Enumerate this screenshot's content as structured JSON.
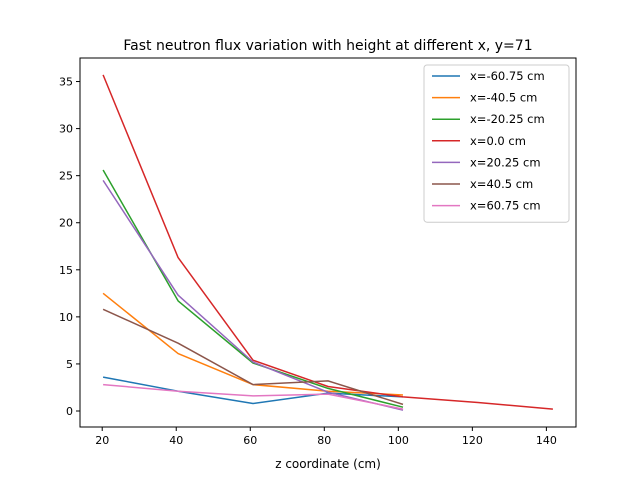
{
  "chart_data": {
    "type": "line",
    "title": "Fast neutron flux variation with height at different x, y=71",
    "xlabel": "z coordinate (cm)",
    "ylabel": "",
    "xlim": [
      14,
      148
    ],
    "ylim": [
      -1.7,
      37.5
    ],
    "xticks": [
      "20",
      "40",
      "60",
      "80",
      "100",
      "120",
      "140"
    ],
    "yticks": [
      "0",
      "5",
      "10",
      "15",
      "20",
      "25",
      "30",
      "35"
    ],
    "grid": false,
    "legend_position": "upper right",
    "series": [
      {
        "name": "x=-60.75 cm",
        "color": "#1f77b4",
        "x": [
          20.25,
          40.5,
          60.75,
          81.0,
          101.25
        ],
        "y": [
          3.6,
          2.1,
          0.8,
          1.9,
          1.5
        ]
      },
      {
        "name": "x=-40.5 cm",
        "color": "#ff7f0e",
        "x": [
          20.25,
          40.5,
          60.75,
          81.0,
          101.25
        ],
        "y": [
          12.5,
          6.1,
          2.8,
          2.1,
          1.7
        ]
      },
      {
        "name": "x=-20.25 cm",
        "color": "#2ca02c",
        "x": [
          20.25,
          40.5,
          60.75,
          81.0,
          101.25
        ],
        "y": [
          25.6,
          11.7,
          5.1,
          2.4,
          0.4
        ]
      },
      {
        "name": "x=0.0 cm",
        "color": "#d62728",
        "x": [
          20.25,
          40.5,
          60.75,
          81.0,
          101.25,
          121.5,
          141.75
        ],
        "y": [
          35.7,
          16.3,
          5.4,
          2.6,
          1.5,
          0.9,
          0.2
        ]
      },
      {
        "name": "x=20.25 cm",
        "color": "#9467bd",
        "x": [
          20.25,
          40.5,
          60.75,
          81.0,
          101.25
        ],
        "y": [
          24.5,
          12.3,
          5.2,
          2.0,
          0.1
        ]
      },
      {
        "name": "x=40.5 cm",
        "color": "#8c564b",
        "x": [
          20.25,
          40.5,
          60.75,
          81.0,
          101.25
        ],
        "y": [
          10.8,
          7.2,
          2.8,
          3.2,
          0.7
        ]
      },
      {
        "name": "x=60.75 cm",
        "color": "#e377c2",
        "x": [
          20.25,
          40.5,
          60.75,
          81.0,
          101.25
        ],
        "y": [
          2.8,
          2.1,
          1.6,
          1.8,
          0.2
        ]
      }
    ]
  }
}
